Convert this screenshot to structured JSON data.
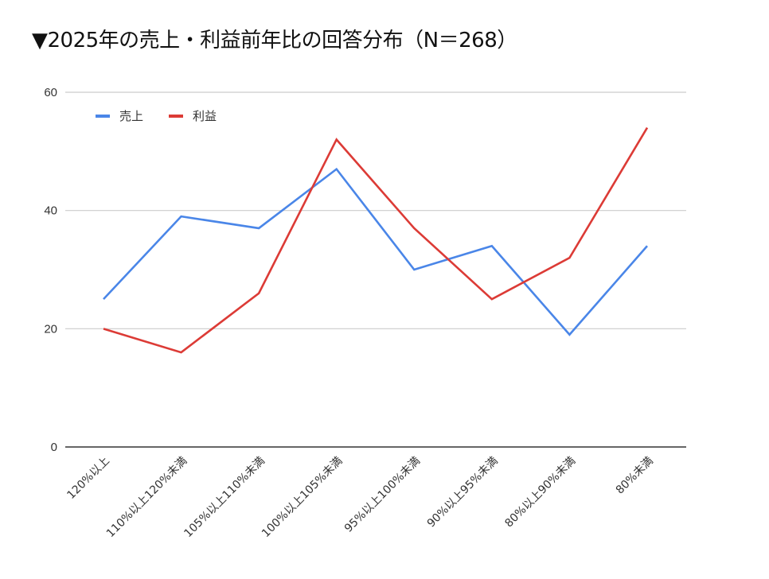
{
  "title": "▼2025年の売上・利益前年比の回答分布（N＝268）",
  "chart_data": {
    "type": "line",
    "title": "▼2025年の売上・利益前年比の回答分布（N＝268）",
    "xlabel": "",
    "ylabel": "",
    "ylim": [
      0,
      60
    ],
    "yticks": [
      0,
      20,
      40,
      60
    ],
    "grid": true,
    "legend_position": "top-left",
    "categories": [
      "120%以上",
      "110%以上120%未満",
      "105%以上110%未満",
      "100%以上105%未満",
      "95%以上100%未満",
      "90%以上95%未満",
      "80%以上90%未満",
      "80%未満"
    ],
    "series": [
      {
        "name": "売上",
        "color": "#4a86e8",
        "values": [
          25,
          39,
          37,
          47,
          30,
          34,
          19,
          34
        ]
      },
      {
        "name": "利益",
        "color": "#dc3b36",
        "values": [
          20,
          16,
          26,
          52,
          37,
          25,
          32,
          54
        ]
      }
    ]
  }
}
